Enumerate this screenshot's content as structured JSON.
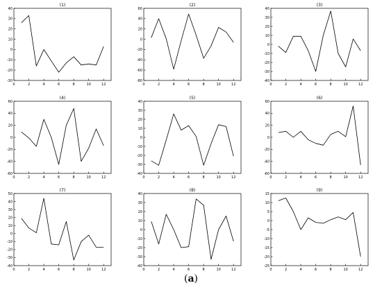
{
  "caption": {
    "open": "(",
    "letter": "a",
    "close": ")"
  },
  "chart_data": [
    {
      "type": "line",
      "title": "(1)",
      "xlim": [
        0,
        13
      ],
      "ylim": [
        -30,
        40
      ],
      "xticks": [
        0,
        2,
        4,
        6,
        8,
        10,
        12
      ],
      "yticks": [
        -30,
        -20,
        -10,
        0,
        10,
        20,
        30,
        40
      ],
      "x": [
        1,
        2,
        3,
        4,
        5,
        6,
        7,
        8,
        9,
        10,
        11,
        12
      ],
      "y": [
        26,
        33,
        -16,
        0,
        -11,
        -22,
        -13,
        -7,
        -15,
        -14,
        -15,
        3
      ]
    },
    {
      "type": "line",
      "title": "(2)",
      "xlim": [
        0,
        13
      ],
      "ylim": [
        -80,
        60
      ],
      "xticks": [
        0,
        2,
        4,
        6,
        8,
        10,
        12
      ],
      "yticks": [
        -80,
        -60,
        -40,
        -20,
        0,
        20,
        40,
        60
      ],
      "x": [
        1,
        2,
        3,
        4,
        5,
        6,
        7,
        8,
        9,
        10,
        11,
        12
      ],
      "y": [
        3,
        40,
        1,
        -58,
        -3,
        49,
        8,
        -37,
        -13,
        23,
        14,
        -6
      ]
    },
    {
      "type": "line",
      "title": "(3)",
      "xlim": [
        0,
        13
      ],
      "ylim": [
        -40,
        40
      ],
      "xticks": [
        0,
        2,
        4,
        6,
        8,
        10,
        12
      ],
      "yticks": [
        -40,
        -30,
        -20,
        -10,
        0,
        10,
        20,
        30,
        40
      ],
      "x": [
        1,
        2,
        3,
        4,
        5,
        6,
        7,
        8,
        9,
        10,
        11,
        12
      ],
      "y": [
        -2,
        -9,
        9,
        9,
        -7,
        -30,
        10,
        37,
        -10,
        -25,
        6,
        -7
      ]
    },
    {
      "type": "line",
      "title": "(4)",
      "xlim": [
        0,
        13
      ],
      "ylim": [
        -60,
        60
      ],
      "xticks": [
        0,
        2,
        4,
        6,
        8,
        10,
        12
      ],
      "yticks": [
        -60,
        -40,
        -20,
        0,
        20,
        40,
        60
      ],
      "x": [
        1,
        2,
        3,
        4,
        5,
        6,
        7,
        8,
        9,
        10,
        11,
        12
      ],
      "y": [
        9,
        -1,
        -15,
        30,
        0,
        -45,
        20,
        48,
        -40,
        -18,
        14,
        -14
      ]
    },
    {
      "type": "line",
      "title": "(5)",
      "xlim": [
        0,
        13
      ],
      "ylim": [
        -40,
        40
      ],
      "xticks": [
        0,
        2,
        4,
        6,
        8,
        10,
        12
      ],
      "yticks": [
        -40,
        -30,
        -20,
        -10,
        0,
        10,
        20,
        30,
        40
      ],
      "x": [
        1,
        2,
        3,
        4,
        5,
        6,
        7,
        8,
        9,
        10,
        11,
        12
      ],
      "y": [
        -26,
        -31,
        -3,
        26,
        8,
        13,
        1,
        -31,
        -7,
        14,
        12,
        -21
      ]
    },
    {
      "type": "line",
      "title": "(6)",
      "xlim": [
        0,
        13
      ],
      "ylim": [
        -60,
        60
      ],
      "xticks": [
        0,
        2,
        4,
        6,
        8,
        10,
        12
      ],
      "yticks": [
        -60,
        -40,
        -20,
        0,
        20,
        40,
        60
      ],
      "x": [
        1,
        2,
        3,
        4,
        5,
        6,
        7,
        8,
        9,
        10,
        11,
        12
      ],
      "y": [
        8,
        10,
        0,
        10,
        -4,
        -10,
        -13,
        5,
        10,
        1,
        52,
        -46
      ]
    },
    {
      "type": "line",
      "title": "(7)",
      "xlim": [
        0,
        13
      ],
      "ylim": [
        -40,
        50
      ],
      "xticks": [
        0,
        2,
        4,
        6,
        8,
        10,
        12
      ],
      "yticks": [
        -40,
        -30,
        -20,
        -10,
        0,
        10,
        20,
        30,
        40,
        50
      ],
      "x": [
        1,
        2,
        3,
        4,
        5,
        6,
        7,
        8,
        9,
        10,
        11,
        12
      ],
      "y": [
        19,
        7,
        1,
        44,
        -13,
        -14,
        15,
        -33,
        -10,
        -2,
        -17,
        -17
      ]
    },
    {
      "type": "line",
      "title": "(8)",
      "xlim": [
        0,
        13
      ],
      "ylim": [
        -40,
        40
      ],
      "xticks": [
        0,
        2,
        4,
        6,
        8,
        10,
        12
      ],
      "yticks": [
        -40,
        -30,
        -20,
        -10,
        0,
        10,
        20,
        30,
        40
      ],
      "x": [
        1,
        2,
        3,
        4,
        5,
        6,
        7,
        8,
        9,
        10,
        11,
        12
      ],
      "y": [
        9,
        -16,
        17,
        0,
        -20,
        -19,
        34,
        27,
        -33,
        0,
        15,
        -13
      ]
    },
    {
      "type": "line",
      "title": "(9)",
      "xlim": [
        0,
        13
      ],
      "ylim": [
        -25,
        15
      ],
      "xticks": [
        0,
        2,
        4,
        6,
        8,
        10,
        12
      ],
      "yticks": [
        -25,
        -20,
        -15,
        -10,
        -5,
        0,
        5,
        10,
        15
      ],
      "x": [
        1,
        2,
        3,
        4,
        5,
        6,
        7,
        8,
        9,
        10,
        11,
        12
      ],
      "y": [
        11,
        12.5,
        5,
        -5,
        1.5,
        -1,
        -1.5,
        0.5,
        2,
        0.5,
        4.5,
        -20
      ]
    }
  ]
}
